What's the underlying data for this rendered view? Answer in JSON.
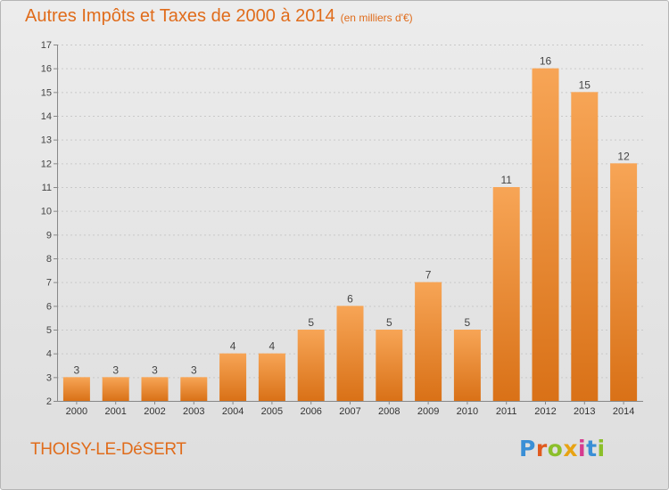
{
  "title": {
    "main": "Autres Impôts et Taxes de 2000 à 2014",
    "unit": "(en milliers d'€)"
  },
  "commune": "THOISY-LE-DéSERT",
  "logo": {
    "text": "Proxiti",
    "letter_colors": [
      "#3a8fd6",
      "#e05a1e",
      "#8bbf2a",
      "#e8a313",
      "#d63b8f",
      "#3a8fd6",
      "#8bbf2a"
    ]
  },
  "chart_data": {
    "type": "bar",
    "categories": [
      "2000",
      "2001",
      "2002",
      "2003",
      "2004",
      "2005",
      "2006",
      "2007",
      "2008",
      "2009",
      "2010",
      "2011",
      "2012",
      "2013",
      "2014"
    ],
    "values": [
      3,
      3,
      3,
      3,
      4,
      4,
      5,
      6,
      5,
      7,
      5,
      11,
      16,
      15,
      12
    ],
    "data_labels": [
      "3",
      "3",
      "3",
      "3",
      "4",
      "4",
      "5",
      "6",
      "5",
      "7",
      "5",
      "11",
      "16",
      "15",
      "12"
    ],
    "ylim": [
      2,
      17
    ],
    "yticks": [
      2,
      3,
      4,
      5,
      6,
      7,
      8,
      9,
      10,
      11,
      12,
      13,
      14,
      15,
      16,
      17
    ],
    "ytick_labels": [
      "2",
      "3",
      "4",
      "5",
      "6",
      "7",
      "8",
      "9",
      "10",
      "11",
      "12",
      "13",
      "14",
      "15",
      "16",
      "17"
    ],
    "grid": "horizontal dashed",
    "bar_color_top": "#f7a556",
    "bar_color_bottom": "#d97117"
  }
}
